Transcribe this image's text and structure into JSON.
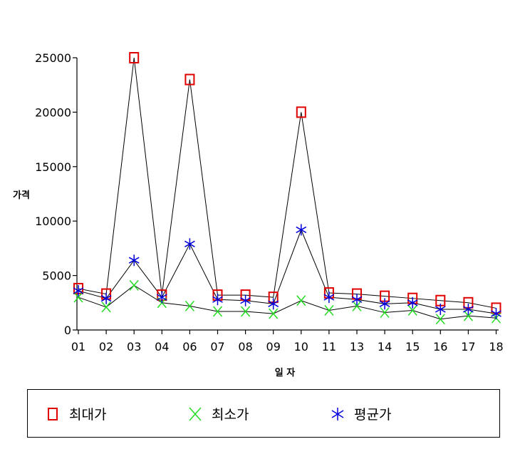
{
  "chart_data": {
    "type": "line",
    "title": "",
    "xlabel": "일 자",
    "ylabel": "가격",
    "categories": [
      "01",
      "02",
      "03",
      "04",
      "06",
      "07",
      "08",
      "09",
      "10",
      "11",
      "13",
      "14",
      "15",
      "16",
      "17",
      "18"
    ],
    "ylim": [
      0,
      25000
    ],
    "yticks": [
      0,
      5000,
      10000,
      15000,
      20000,
      25000
    ],
    "grid": false,
    "legend_position": "bottom",
    "series": [
      {
        "name": "최대가",
        "marker": "square",
        "color": "#e00000",
        "values": [
          3800,
          3300,
          25000,
          3200,
          23000,
          3200,
          3200,
          3000,
          20000,
          3400,
          3300,
          3100,
          2900,
          2700,
          2500,
          2000
        ]
      },
      {
        "name": "최소가",
        "marker": "x",
        "color": "#22dd22",
        "values": [
          3000,
          2100,
          4100,
          2500,
          2200,
          1700,
          1700,
          1500,
          2700,
          1800,
          2200,
          1600,
          1800,
          1000,
          1300,
          1100
        ]
      },
      {
        "name": "평균가",
        "marker": "star",
        "color": "#0000dd",
        "values": [
          3600,
          2900,
          6400,
          3000,
          7900,
          2800,
          2700,
          2400,
          9200,
          3000,
          2800,
          2400,
          2500,
          1900,
          1900,
          1500
        ]
      }
    ]
  }
}
